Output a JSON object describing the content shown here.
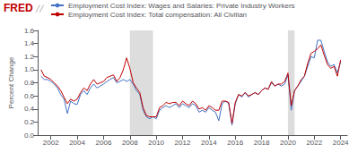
{
  "chart_data": {
    "type": "line",
    "y_label": "Percent Change",
    "annotations": [
      {
        "text": "FRED",
        "color": "#c00000"
      },
      {
        "text": "╱╱",
        "color": "#888888"
      }
    ],
    "legend": "upper left",
    "grid": false,
    "xlim": [
      2001.0,
      2024.5
    ],
    "xticks": [
      2002,
      2004,
      2006,
      2008,
      2010,
      2012,
      2014,
      2016,
      2018,
      2020,
      2022,
      2024
    ],
    "ylim": [
      0.0,
      1.6
    ],
    "yticks": [
      {
        "value": 0.0,
        "label": "0.0"
      },
      0.2,
      0.4,
      0.6,
      0.8,
      {
        "value": 1.0,
        "label": "1.0"
      },
      1.2,
      1.4,
      1.6
    ],
    "recession_bands": [
      [
        2008.0,
        2009.75
      ],
      [
        2020.0,
        2020.5
      ]
    ],
    "x": [
      2001.25,
      2001.5,
      2001.75,
      2002.0,
      2002.25,
      2002.5,
      2002.75,
      2003.0,
      2003.25,
      2003.5,
      2003.75,
      2004.0,
      2004.25,
      2004.5,
      2004.75,
      2005.0,
      2005.25,
      2005.5,
      2005.75,
      2006.0,
      2006.25,
      2006.5,
      2006.75,
      2007.0,
      2007.25,
      2007.5,
      2007.75,
      2008.0,
      2008.25,
      2008.5,
      2008.75,
      2009.0,
      2009.25,
      2009.5,
      2009.75,
      2010.0,
      2010.25,
      2010.5,
      2010.75,
      2011.0,
      2011.25,
      2011.5,
      2011.75,
      2012.0,
      2012.25,
      2012.5,
      2012.75,
      2013.0,
      2013.25,
      2013.5,
      2013.75,
      2014.0,
      2014.25,
      2014.5,
      2014.75,
      2015.0,
      2015.25,
      2015.5,
      2015.75,
      2016.0,
      2016.25,
      2016.5,
      2016.75,
      2017.0,
      2017.25,
      2017.5,
      2017.75,
      2018.0,
      2018.25,
      2018.5,
      2018.75,
      2019.0,
      2019.25,
      2019.5,
      2019.75,
      2020.0,
      2020.25,
      2020.5,
      2020.75,
      2021.0,
      2021.25,
      2021.5,
      2021.75,
      2022.0,
      2022.25,
      2022.5,
      2022.75,
      2023.0,
      2023.25,
      2023.5,
      2023.75,
      2024.0
    ],
    "series": [
      {
        "name": "Employment Cost Index: Wages and Salaries: Private Industry Workers",
        "color": "#4472c4",
        "values": [
          0.9,
          0.85,
          0.85,
          0.82,
          0.78,
          0.72,
          0.62,
          0.55,
          0.33,
          0.52,
          0.48,
          0.47,
          0.62,
          0.68,
          0.62,
          0.72,
          0.78,
          0.72,
          0.75,
          0.78,
          0.82,
          0.85,
          0.88,
          0.8,
          0.82,
          0.85,
          0.82,
          0.85,
          0.78,
          0.68,
          0.62,
          0.38,
          0.28,
          0.25,
          0.28,
          0.25,
          0.38,
          0.42,
          0.45,
          0.42,
          0.45,
          0.48,
          0.42,
          0.48,
          0.45,
          0.42,
          0.48,
          0.45,
          0.35,
          0.38,
          0.35,
          0.42,
          0.38,
          0.35,
          0.22,
          0.48,
          0.52,
          0.48,
          0.15,
          0.48,
          0.62,
          0.58,
          0.65,
          0.58,
          0.62,
          0.65,
          0.62,
          0.68,
          0.72,
          0.7,
          0.8,
          0.75,
          0.78,
          0.75,
          0.78,
          0.92,
          0.38,
          0.68,
          0.75,
          0.82,
          0.9,
          1.05,
          1.2,
          1.18,
          1.45,
          1.45,
          1.28,
          1.12,
          1.05,
          1.08,
          0.95,
          1.12
        ]
      },
      {
        "name": "Employment Cost Index: Total compensation: All Civilian",
        "color": "#c00000",
        "values": [
          1.0,
          0.9,
          0.88,
          0.85,
          0.8,
          0.75,
          0.68,
          0.58,
          0.48,
          0.55,
          0.52,
          0.55,
          0.65,
          0.72,
          0.68,
          0.78,
          0.85,
          0.78,
          0.8,
          0.82,
          0.88,
          0.9,
          0.92,
          0.82,
          0.88,
          1.0,
          1.18,
          1.02,
          0.8,
          0.72,
          0.65,
          0.42,
          0.3,
          0.28,
          0.28,
          0.28,
          0.42,
          0.45,
          0.5,
          0.48,
          0.5,
          0.5,
          0.45,
          0.52,
          0.48,
          0.45,
          0.52,
          0.48,
          0.4,
          0.42,
          0.38,
          0.45,
          0.42,
          0.38,
          0.38,
          0.52,
          0.52,
          0.5,
          0.18,
          0.5,
          0.62,
          0.6,
          0.65,
          0.6,
          0.62,
          0.65,
          0.62,
          0.68,
          0.72,
          0.7,
          0.82,
          0.75,
          0.78,
          0.78,
          0.82,
          0.95,
          0.45,
          0.68,
          0.75,
          0.85,
          0.9,
          1.1,
          1.25,
          1.28,
          1.32,
          1.38,
          1.22,
          1.08,
          1.02,
          1.05,
          0.9,
          1.15
        ]
      }
    ]
  }
}
